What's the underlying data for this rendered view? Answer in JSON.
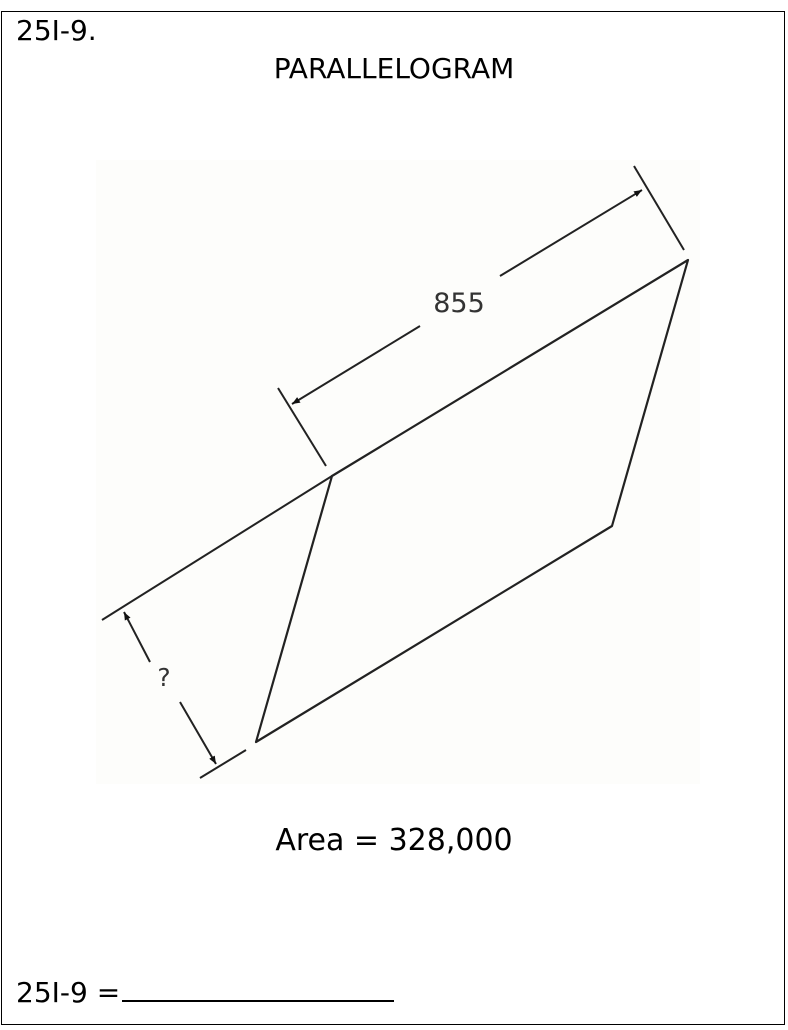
{
  "problem": {
    "id": "25I-9.",
    "title": "PARALLELOGRAM"
  },
  "figure": {
    "base_label": "855",
    "height_label": "?",
    "area_label": "Area = 328,000"
  },
  "answer": {
    "prompt": "25I-9 ="
  }
}
